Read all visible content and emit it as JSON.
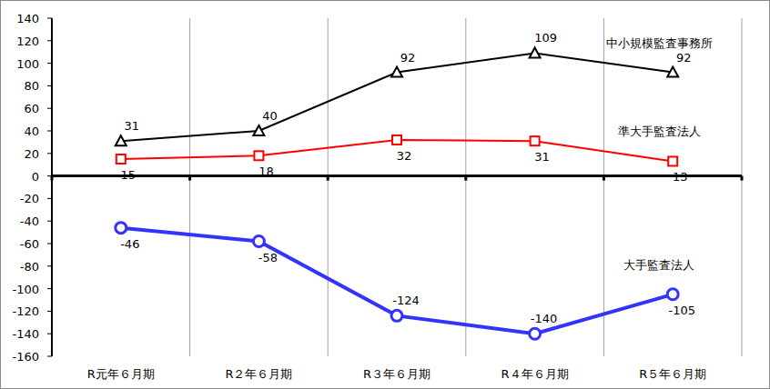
{
  "chart_data": {
    "type": "line",
    "categories": [
      "R元年６月期",
      "R２年６月期",
      "R３年６月期",
      "R４年６月期",
      "R５年６月期"
    ],
    "series": [
      {
        "name": "中小規模監査事務所",
        "color": "#000000",
        "marker": "triangle",
        "values": [
          31,
          40,
          92,
          109,
          92
        ]
      },
      {
        "name": "準大手監査法人",
        "color": "#ff0000",
        "marker": "square",
        "values": [
          15,
          18,
          32,
          31,
          13
        ]
      },
      {
        "name": "大手監査法人",
        "color": "#3333ff",
        "marker": "circle",
        "values": [
          -46,
          -58,
          -124,
          -140,
          -105
        ]
      }
    ],
    "ylim": [
      -160,
      140
    ],
    "yticks": [
      -160,
      -140,
      -120,
      -100,
      -80,
      -60,
      -40,
      -20,
      0,
      20,
      40,
      60,
      80,
      100,
      120,
      140
    ],
    "grid": true,
    "data_labels": true
  }
}
